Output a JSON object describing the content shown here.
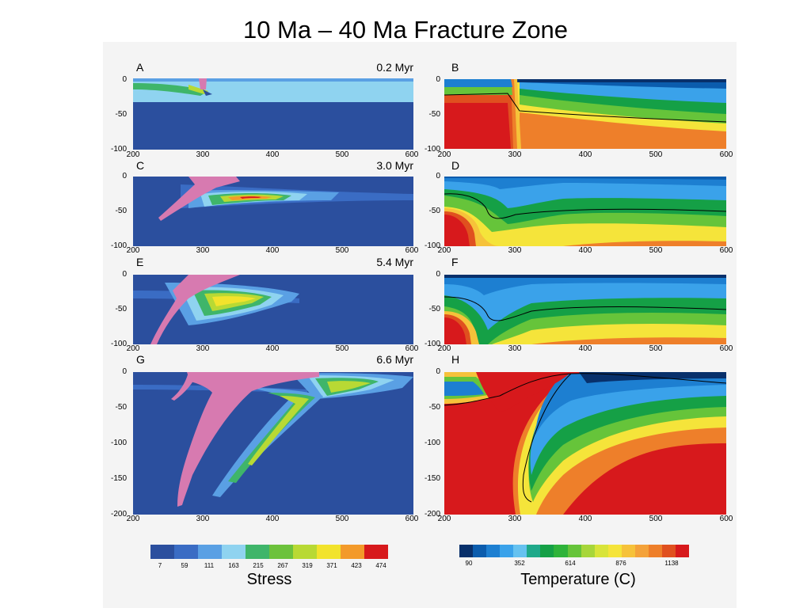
{
  "title": "10 Ma – 40 Ma Fracture Zone",
  "panels": [
    {
      "id": "A",
      "type": "stress",
      "time": "0.2 Myr",
      "yticks": [
        "0",
        "-50",
        "-100"
      ],
      "xticks": [
        "200",
        "300",
        "400",
        "500",
        "600"
      ]
    },
    {
      "id": "B",
      "type": "temp",
      "time": "",
      "yticks": [
        "0",
        "-50",
        "-100"
      ],
      "xticks": [
        "200",
        "300",
        "400",
        "500",
        "600"
      ]
    },
    {
      "id": "C",
      "type": "stress",
      "time": "3.0 Myr",
      "yticks": [
        "0",
        "-50",
        "-100"
      ],
      "xticks": [
        "200",
        "300",
        "400",
        "500",
        "600"
      ]
    },
    {
      "id": "D",
      "type": "temp",
      "time": "",
      "yticks": [
        "0",
        "-50",
        "-100"
      ],
      "xticks": [
        "200",
        "300",
        "400",
        "500",
        "600"
      ]
    },
    {
      "id": "E",
      "type": "stress",
      "time": "5.4 Myr",
      "yticks": [
        "0",
        "-50",
        "-100"
      ],
      "xticks": [
        "200",
        "300",
        "400",
        "500",
        "600"
      ]
    },
    {
      "id": "F",
      "type": "temp",
      "time": "",
      "yticks": [
        "0",
        "-50",
        "-100"
      ],
      "xticks": [
        "200",
        "300",
        "400",
        "500",
        "600"
      ]
    },
    {
      "id": "G",
      "type": "stress",
      "time": "6.6 Myr",
      "yticks": [
        "0",
        "-50",
        "-100",
        "-150",
        "-200"
      ],
      "xticks": [
        "200",
        "300",
        "400",
        "500",
        "600"
      ]
    },
    {
      "id": "H",
      "type": "temp",
      "time": "",
      "yticks": [
        "0",
        "-50",
        "-100",
        "-150",
        "-200"
      ],
      "xticks": [
        "200",
        "300",
        "400",
        "500",
        "600"
      ]
    }
  ],
  "stress_colorbar": {
    "label": "Stress",
    "ticks": [
      "7",
      "59",
      "111",
      "163",
      "215",
      "267",
      "319",
      "371",
      "423",
      "474"
    ],
    "colors": [
      "#2b4f9e",
      "#3a6cc4",
      "#5aa0e4",
      "#8fd3f0",
      "#3fb56a",
      "#6cc23c",
      "#b8d934",
      "#f2e32c",
      "#f39a2a",
      "#d7191c"
    ]
  },
  "temp_colorbar": {
    "label": "Temperature (C)",
    "ticks": [
      "90",
      "352",
      "614",
      "876",
      "1138"
    ],
    "colors": [
      "#08306b",
      "#0b5cad",
      "#1d7fd1",
      "#3aa2ea",
      "#66c2f0",
      "#1fa98a",
      "#15a046",
      "#2fb33a",
      "#66c43a",
      "#a7d63a",
      "#d8e43a",
      "#f5e43a",
      "#f6c23a",
      "#f4a23a",
      "#ee7f2a",
      "#e0501f",
      "#d7191c"
    ]
  },
  "colors": {
    "background": "#2b4f9e",
    "pink": "#d77ab0",
    "red": "#e0201c"
  }
}
